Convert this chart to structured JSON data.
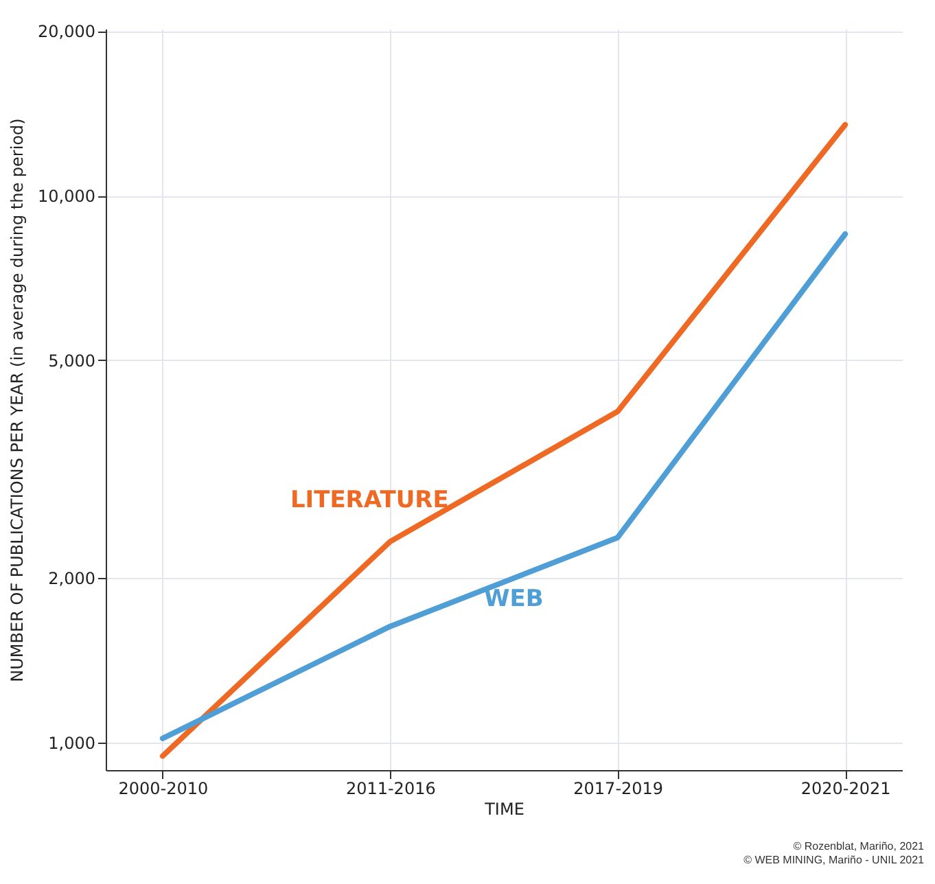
{
  "chart_data": {
    "type": "line",
    "xlabel": "TIME",
    "ylabel": "NUMBER OF PUBLICATIONS PER YEAR (in average during the period)",
    "categories": [
      "2000-2010",
      "2011-2016",
      "2017-2019",
      "2020-2021"
    ],
    "ylim": [
      890,
      20200
    ],
    "yticks": [
      {
        "value": 1000,
        "label": "1,000"
      },
      {
        "value": 2000,
        "label": "2,000"
      },
      {
        "value": 5000,
        "label": "5,000"
      },
      {
        "value": 10000,
        "label": "10,000"
      },
      {
        "value": 20000,
        "label": "20,000"
      }
    ],
    "log": "y",
    "grid": true,
    "marker": "none",
    "line_style": "solid",
    "legend": false,
    "series": [
      {
        "name": "LITERATURE",
        "color": "#ee6a24",
        "values": [
          944,
          2330,
          4030,
          13490
        ]
      },
      {
        "name": "WEB",
        "color": "#4f9fd6",
        "values": [
          1017,
          1630,
          2370,
          8510
        ]
      }
    ],
    "annotations": [
      "© Rozenblat, Mariño, 2021",
      "© WEB MINING, Mariño - UNIL 2021"
    ]
  }
}
